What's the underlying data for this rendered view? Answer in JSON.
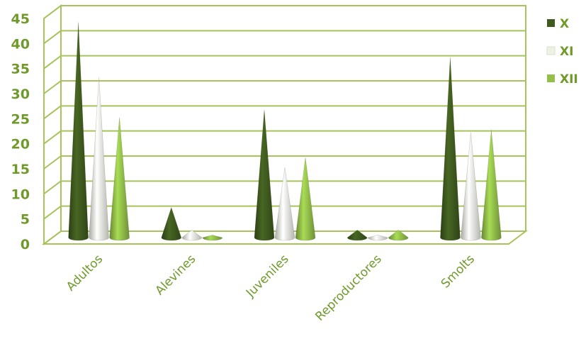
{
  "chart_data": {
    "type": "bar",
    "style": "3d-cone",
    "categories": [
      "Adultos",
      "Alevines",
      "Juveniles",
      "Reproductores",
      "Smolts"
    ],
    "series": [
      {
        "name": "X",
        "color": "#3f5a1e",
        "values": [
          43,
          6,
          25.5,
          1.5,
          36
        ]
      },
      {
        "name": "XI",
        "color": "#eef1e6",
        "values": [
          32,
          1.5,
          14,
          0.5,
          21
        ]
      },
      {
        "name": "XII",
        "color": "#93bf4a",
        "values": [
          24,
          0.5,
          16,
          1.5,
          21.5
        ]
      }
    ],
    "ylim": [
      0,
      45
    ],
    "yticks": [
      "0",
      "5",
      "10",
      "15",
      "20",
      "25",
      "30",
      "35",
      "40",
      "45"
    ],
    "grid": true,
    "legend": "right",
    "colors": {
      "grid": "#a6c35c",
      "axis_text": "#6f9a2a"
    }
  }
}
